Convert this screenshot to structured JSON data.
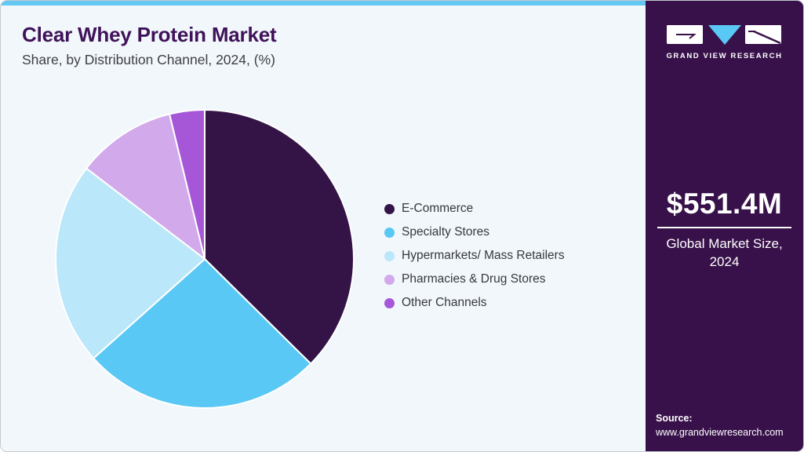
{
  "header": {
    "title": "Clear Whey Protein Market",
    "subtitle": "Share, by Distribution Channel, 2024, (%)"
  },
  "chart_data": {
    "type": "pie",
    "title": "Clear Whey Protein Market Share, by Distribution Channel, 2024, (%)",
    "unit": "%",
    "legend_position": "right",
    "start_angle_deg": 0,
    "direction": "clockwise",
    "series": [
      {
        "name": "E-Commerce",
        "value": 37.4,
        "color": "#341446"
      },
      {
        "name": "Specialty Stores",
        "value": 26.0,
        "color": "#5ac8f5"
      },
      {
        "name": "Hypermarkets/ Mass Retailers",
        "value": 22.0,
        "color": "#bae7f9"
      },
      {
        "name": "Pharmacies & Drug Stores",
        "value": 10.8,
        "color": "#d2a9ea"
      },
      {
        "name": "Other Channels",
        "value": 3.8,
        "color": "#a657d8"
      }
    ]
  },
  "sidebar": {
    "brand": "GRAND VIEW RESEARCH",
    "market_size": "$551.4M",
    "market_size_caption": "Global Market Size, 2024",
    "source_label": "Source:",
    "source_url": "www.grandviewresearch.com"
  },
  "colors": {
    "accent_top_bar": "#63c9f3",
    "sidebar_bg": "#38114a",
    "title_text": "#3f1259",
    "main_bg": "#f1f7fb",
    "logo_triangle": "#5ac8f5"
  }
}
